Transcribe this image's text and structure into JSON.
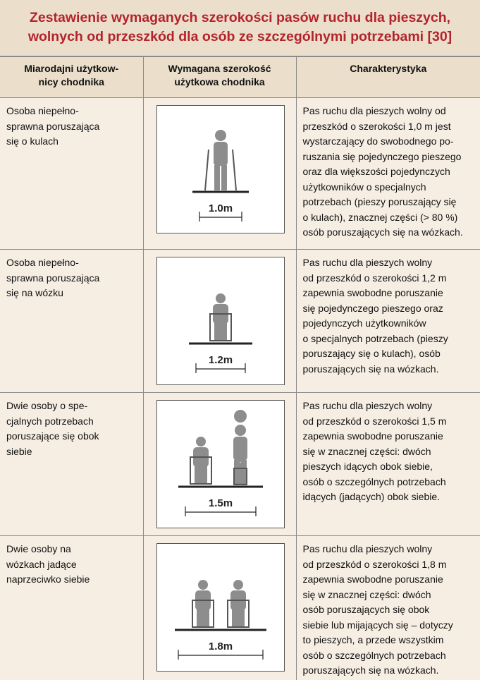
{
  "title": [
    "Zestawienie wymaganych szerokości pasów ruchu dla pieszych,",
    "wolnych od przeszkód dla osób ze szczególnymi potrzebami [30]"
  ],
  "table": {
    "headers": [
      [
        "Miarodajni użytkow-",
        "nicy chodnika"
      ],
      [
        "Wymagana szerokość",
        "użytkowa chodnika"
      ],
      [
        "Charakterystyka"
      ]
    ],
    "rows": [
      {
        "users": [
          "Osoba niepełno-",
          "sprawna poruszająca",
          "się o kulach"
        ],
        "width_label": "1.0m",
        "description": [
          "Pas ruchu dla pieszych wolny od",
          "przeszkód o szerokości 1,0 m jest",
          "wystarczający do swobodnego po-",
          "ruszania się pojedynczego pieszego",
          "oraz dla większości pojedynczych",
          "użytkowników o specjalnych",
          "potrzebach (pieszy poruszający się",
          "o kulach), znacznej części (> 80 %)",
          "osób poruszających się na wózkach."
        ]
      },
      {
        "users": [
          "Osoba niepełno-",
          "sprawna poruszająca",
          "się na wózku"
        ],
        "width_label": "1.2m",
        "description": [
          "Pas ruchu dla pieszych wolny",
          "od przeszkód o szerokości 1,2 m",
          "zapewnia swobodne poruszanie",
          "się pojedynczego pieszego oraz",
          "pojedynczych użytkowników",
          "o specjalnych potrzebach (pieszy",
          "poruszający się o kulach), osób",
          "poruszających się na wózkach."
        ]
      },
      {
        "users": [
          "Dwie osoby o spe-",
          "cjalnych potrzebach",
          "poruszające się obok",
          "siebie"
        ],
        "width_label": "1.5m",
        "description": [
          "Pas ruchu dla pieszych wolny",
          "od przeszkód o szerokości 1,5 m",
          "zapewnia swobodne poruszanie",
          "się w znacznej części: dwóch",
          "pieszych idących obok siebie,",
          "osób o szczególnych potrzebach",
          "idących (jadących) obok siebie."
        ]
      },
      {
        "users": [
          "Dwie osoby na",
          "wózkach jadące",
          "naprzeciwko siebie"
        ],
        "width_label": "1.8m",
        "description": [
          "Pas ruchu dla pieszych wolny",
          "od przeszkód o szerokości 1,8 m",
          "zapewnia swobodne poruszanie",
          "się w znacznej części: dwóch",
          "osób poruszających się obok",
          "siebie lub mijających się – dotyczy",
          "to pieszych, a przede wszystkim",
          "osób o szczególnych potrzebach",
          "poruszających się na wózkach."
        ]
      }
    ]
  }
}
